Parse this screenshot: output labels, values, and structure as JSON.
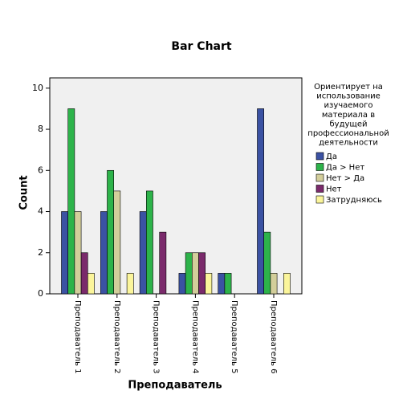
{
  "chart_data": {
    "type": "bar",
    "title": "Bar Chart",
    "xlabel": "Преподаватель",
    "ylabel": "Count",
    "categories": [
      "Преподаватель 1",
      "Преподаватель 2",
      "Преподаватель 3",
      "Преподаватель 4",
      "Преподаватель 5",
      "Преподаватель 6"
    ],
    "legend_title": [
      "Ориентирует на",
      "использование",
      "изучаемого",
      "материала в",
      "будущей",
      "профессиональной",
      "деятельности"
    ],
    "series": [
      {
        "name": "Да",
        "color": "#3b52a3",
        "values": [
          4,
          4,
          4,
          1,
          1,
          9
        ]
      },
      {
        "name": "Да > Нет",
        "color": "#2db34a",
        "values": [
          9,
          6,
          5,
          2,
          1,
          3
        ]
      },
      {
        "name": "Нет > Да",
        "color": "#d3ce9b",
        "values": [
          4,
          5,
          0,
          2,
          0,
          1
        ]
      },
      {
        "name": "Нет",
        "color": "#7a2a6b",
        "values": [
          2,
          0,
          3,
          2,
          0,
          0
        ]
      },
      {
        "name": "Затрудняюсь",
        "color": "#fbf59b",
        "values": [
          1,
          1,
          0,
          1,
          0,
          1
        ]
      }
    ],
    "ylim": [
      0,
      10.5
    ],
    "yticks": [
      0,
      2,
      4,
      6,
      8,
      10
    ],
    "legend": "right"
  }
}
